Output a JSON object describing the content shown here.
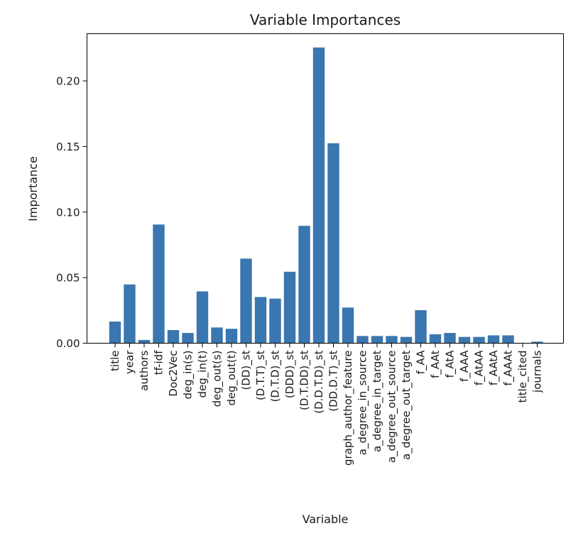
{
  "chart_data": {
    "type": "bar",
    "title": "Variable Importances",
    "xlabel": "Variable",
    "ylabel": "Importance",
    "ylim": [
      0,
      0.236
    ],
    "yticks": [
      0.0,
      0.05,
      0.1,
      0.15,
      0.2
    ],
    "ytick_labels": [
      "0.00",
      "0.05",
      "0.10",
      "0.15",
      "0.20"
    ],
    "grid": false,
    "bar_color": "#3a76af",
    "categories": [
      "title",
      "year",
      "authors",
      "tf-idf",
      "Doc2Vec",
      "deg_in(s)",
      "deg_in(t)",
      "deg_out(s)",
      "deg_out(t)",
      "(DD)_st",
      "(D.T.T)_st",
      "(D.T.D)_st",
      "(DDD)_st",
      "(D.T.DD)_st",
      "(D.D.T.D)_st",
      "(DD.D.T)_st",
      "graph_author_feature",
      "a_degree_in_source",
      "a_degree_in_target",
      "a_degree_out_source",
      "a_degree_out_target",
      "f_AA",
      "f_AAt",
      "f_AtA",
      "f_AAA",
      "f_AtAA",
      "f_AAtA",
      "f_AAAt",
      "title_cited",
      "journals"
    ],
    "values": [
      0.0165,
      0.0448,
      0.0025,
      0.0905,
      0.01,
      0.0078,
      0.0395,
      0.012,
      0.011,
      0.0645,
      0.0352,
      0.034,
      0.0545,
      0.0895,
      0.2255,
      0.1525,
      0.0272,
      0.0055,
      0.0055,
      0.0055,
      0.0048,
      0.0252,
      0.0068,
      0.0078,
      0.0048,
      0.0048,
      0.006,
      0.006,
      0.0,
      0.0012
    ]
  }
}
